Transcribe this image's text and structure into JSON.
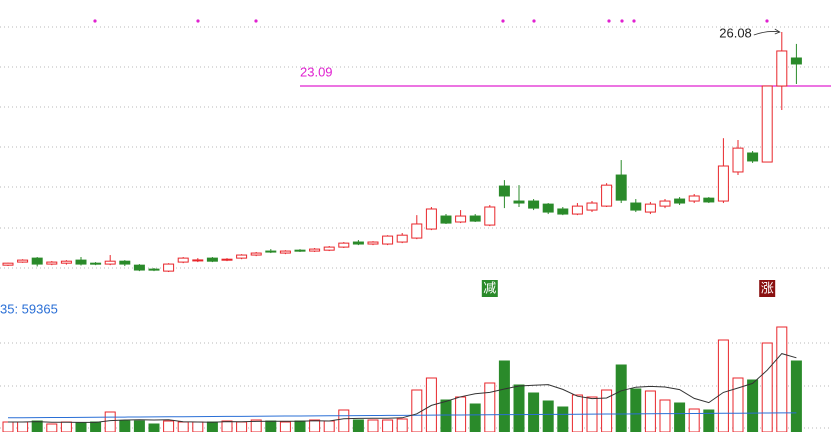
{
  "chart_data": {
    "type": "candlestick",
    "candles": [
      [
        13.17,
        13.28,
        13.3,
        13.12
      ],
      [
        13.34,
        13.45,
        13.5,
        13.3
      ],
      [
        13.56,
        13.23,
        13.62,
        13.1
      ],
      [
        13.23,
        13.34,
        13.4,
        13.17
      ],
      [
        13.28,
        13.39,
        13.45,
        13.2
      ],
      [
        13.45,
        13.23,
        13.62,
        13.15
      ],
      [
        13.28,
        13.23,
        13.34,
        13.17
      ],
      [
        13.23,
        13.39,
        13.73,
        13.17
      ],
      [
        13.39,
        13.23,
        13.45,
        13.12
      ],
      [
        13.17,
        12.9,
        13.23,
        12.84
      ],
      [
        12.95,
        12.9,
        13.01,
        12.84
      ],
      [
        12.84,
        13.23,
        13.28,
        12.79
      ],
      [
        13.34,
        13.56,
        13.62,
        13.28
      ],
      [
        13.45,
        13.46,
        13.56,
        13.34
      ],
      [
        13.56,
        13.39,
        13.62,
        13.34
      ],
      [
        13.45,
        13.5,
        13.56,
        13.39
      ],
      [
        13.56,
        13.73,
        13.78,
        13.5
      ],
      [
        13.73,
        13.84,
        13.9,
        13.67
      ],
      [
        13.95,
        13.9,
        14.06,
        13.84
      ],
      [
        13.84,
        13.95,
        14.0,
        13.78
      ],
      [
        14.0,
        13.95,
        14.06,
        13.9
      ],
      [
        13.95,
        14.06,
        14.12,
        13.9
      ],
      [
        14.0,
        14.17,
        14.23,
        13.95
      ],
      [
        14.17,
        14.39,
        14.45,
        14.12
      ],
      [
        14.45,
        14.34,
        14.56,
        14.28
      ],
      [
        14.34,
        14.45,
        14.5,
        14.28
      ],
      [
        14.34,
        14.78,
        14.83,
        14.28
      ],
      [
        14.45,
        14.83,
        14.95,
        14.39
      ],
      [
        14.67,
        15.45,
        15.94,
        14.61
      ],
      [
        15.17,
        16.28,
        16.39,
        15.11
      ],
      [
        15.89,
        15.5,
        16.0,
        15.45
      ],
      [
        15.56,
        15.89,
        16.22,
        15.5
      ],
      [
        15.89,
        15.61,
        16.0,
        15.56
      ],
      [
        15.39,
        16.39,
        16.5,
        15.33
      ],
      [
        17.55,
        17.0,
        17.88,
        16.33
      ],
      [
        16.72,
        16.61,
        17.6,
        16.39
      ],
      [
        16.72,
        16.33,
        16.83,
        16.22
      ],
      [
        16.55,
        16.11,
        16.61,
        16.0
      ],
      [
        16.28,
        16.0,
        16.39,
        15.94
      ],
      [
        16.0,
        16.44,
        16.61,
        15.94
      ],
      [
        16.22,
        16.61,
        16.72,
        16.11
      ],
      [
        16.44,
        17.6,
        17.71,
        16.39
      ],
      [
        18.16,
        16.77,
        18.99,
        16.61
      ],
      [
        16.61,
        16.22,
        16.83,
        16.11
      ],
      [
        16.11,
        16.55,
        16.67,
        16.0
      ],
      [
        16.44,
        16.72,
        16.83,
        16.33
      ],
      [
        16.83,
        16.61,
        16.94,
        16.5
      ],
      [
        16.72,
        17.0,
        17.11,
        16.61
      ],
      [
        16.88,
        16.67,
        16.94,
        16.61
      ],
      [
        16.72,
        18.66,
        20.2,
        16.61
      ],
      [
        18.33,
        19.65,
        20.1,
        18.16
      ],
      [
        19.38,
        18.94,
        19.49,
        18.83
      ],
      [
        18.88,
        23.09,
        23.09,
        18.88
      ],
      [
        23.09,
        25.03,
        26.08,
        21.76
      ],
      [
        24.64,
        24.31,
        25.42,
        23.2
      ]
    ],
    "volume": [
      31000,
      31000,
      34100,
      24800,
      31000,
      27900,
      31000,
      62000,
      34100,
      34100,
      24800,
      34100,
      31000,
      31000,
      31000,
      34100,
      31000,
      37200,
      34100,
      31000,
      34100,
      37200,
      34100,
      68200,
      37200,
      37200,
      37200,
      40300,
      130200,
      167400,
      99200,
      108500,
      86800,
      151900,
      220100,
      145700,
      120900,
      96100,
      77500,
      114700,
      108500,
      130200,
      207700,
      133300,
      127100,
      99200,
      89900,
      71300,
      68200,
      285200,
      167400,
      161200,
      275900,
      325500,
      220100
    ],
    "volume_ma": {
      "color": "#2a6fd6",
      "values": [
        44000,
        44285,
        44570,
        44855,
        45140,
        45425,
        45710,
        45995,
        46280,
        46565,
        46850,
        47135,
        47420,
        47705,
        47990,
        48275,
        48560,
        48845,
        49130,
        49415,
        49700,
        49985,
        50270,
        50555,
        50840,
        51125,
        51410,
        51695,
        51980,
        52265,
        52550,
        52835,
        53120,
        53405,
        53690,
        53975,
        54260,
        54545,
        54830,
        55115,
        55400,
        55685,
        55970,
        56255,
        56540,
        56825,
        57110,
        57395,
        57680,
        57965,
        58250,
        58535,
        58820,
        59105,
        59365
      ]
    },
    "volume_ma_label": "35: 59365",
    "up_color": "#e8262b",
    "down_color": "#2a8a2a",
    "high_label": "26.08",
    "reference_line": {
      "value": 23.09,
      "label": "23.09",
      "color": "#e020d0"
    },
    "signals": [
      {
        "index": 33,
        "label": "减",
        "color": "#2a8a2a"
      },
      {
        "index": 52,
        "label": "涨",
        "color": "#8a1010"
      }
    ]
  }
}
